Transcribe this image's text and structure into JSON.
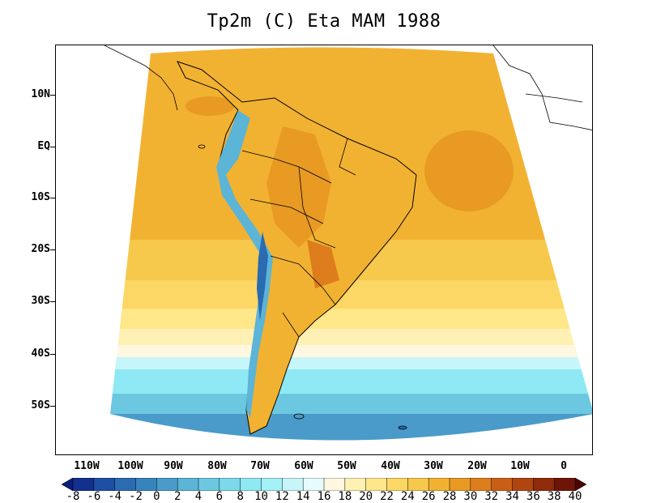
{
  "title": "Tp2m (C) Eta MAM 1988",
  "lat_labels": [
    "10N",
    "EQ",
    "10S",
    "20S",
    "30S",
    "40S",
    "50S"
  ],
  "lon_labels": [
    "110W",
    "100W",
    "90W",
    "80W",
    "70W",
    "60W",
    "50W",
    "40W",
    "30W",
    "20W",
    "10W",
    "0"
  ],
  "colorbar": {
    "labels": [
      "-8",
      "-6",
      "-4",
      "-2",
      "0",
      "2",
      "4",
      "6",
      "8",
      "10",
      "12",
      "14",
      "16",
      "18",
      "20",
      "22",
      "24",
      "26",
      "28",
      "30",
      "32",
      "34",
      "36",
      "38",
      "40"
    ],
    "colors": [
      "#0b1d7a",
      "#14308f",
      "#1e4fa3",
      "#2a6bb1",
      "#3784bd",
      "#4a9bc9",
      "#5cb4d6",
      "#6cc8e0",
      "#7dd9ea",
      "#8ee9f4",
      "#a4f1f7",
      "#c6f6fa",
      "#e6fbfc",
      "#fff7e0",
      "#fff1b3",
      "#ffe78a",
      "#fcd765",
      "#f6c84c",
      "#f2b231",
      "#e99a23",
      "#dd7d1c",
      "#c95f16",
      "#b04510",
      "#8f2b0a",
      "#6d1607",
      "#4b0404"
    ]
  }
}
